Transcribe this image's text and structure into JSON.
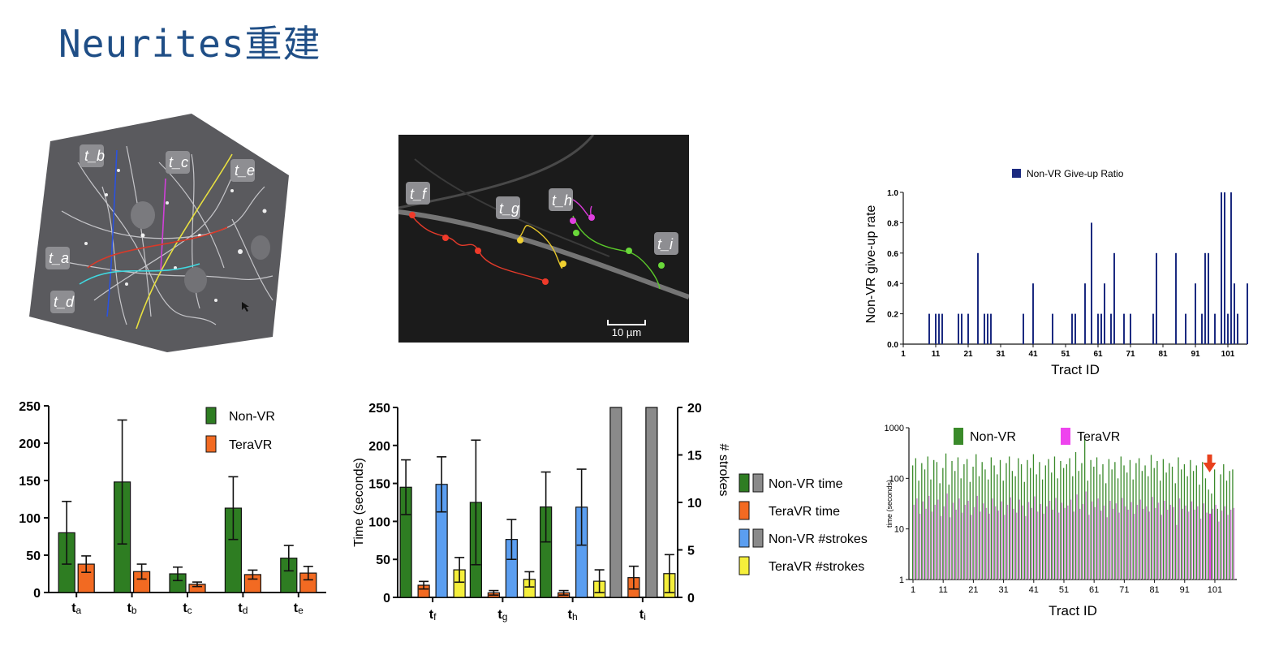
{
  "slide": {
    "title": "Neurites重建"
  },
  "images": {
    "micro1_labels": [
      "t_b",
      "t_c",
      "t_e",
      "t_a",
      "t_d"
    ],
    "micro2_labels": [
      "t_f",
      "t_g",
      "t_h",
      "t_i"
    ],
    "scale_bar": "10 µm"
  },
  "chart_data": [
    {
      "type": "bar",
      "id": "chart-a",
      "categories": [
        "ta",
        "tb",
        "tc",
        "td",
        "te"
      ],
      "category_main": "t",
      "category_sub": [
        "a",
        "b",
        "c",
        "d",
        "e"
      ],
      "ylim": [
        0,
        250
      ],
      "yticks": [
        0,
        50,
        100,
        150,
        200,
        250
      ],
      "series": [
        {
          "name": "Non-VR",
          "color": "#2e7d22",
          "values": [
            80,
            148,
            25,
            113,
            46
          ],
          "err": [
            42,
            83,
            9,
            42,
            17
          ]
        },
        {
          "name": "TeraVR",
          "color": "#f26a22",
          "values": [
            38,
            28,
            11,
            24,
            26
          ],
          "err": [
            11,
            10,
            3,
            6,
            9
          ]
        }
      ],
      "legend": "top-right"
    },
    {
      "type": "bar",
      "id": "chart-b",
      "categories": [
        "tf",
        "tg",
        "th",
        "ti"
      ],
      "category_main": "t",
      "category_sub": [
        "f",
        "g",
        "h",
        "i"
      ],
      "ylabel": "Time (seconds)",
      "ylim": [
        0,
        250
      ],
      "yticks": [
        0,
        50,
        100,
        150,
        200,
        250
      ],
      "y2label": "# strokes",
      "y2lim": [
        0,
        20
      ],
      "y2ticks": [
        0,
        5,
        10,
        15,
        20
      ],
      "series": [
        {
          "name": "Non-VR time",
          "color": "#2e7d22",
          "axis": "left",
          "values": [
            145,
            125,
            119,
            250
          ],
          "err": [
            36,
            82,
            46,
            0
          ]
        },
        {
          "name": "TeraVR time",
          "color": "#f26a22",
          "axis": "left",
          "values": [
            16,
            6,
            6,
            26
          ],
          "err": [
            5,
            3,
            3,
            15
          ]
        },
        {
          "name": "Non-VR #strokes",
          "color": "#5b9ef0",
          "axis": "right",
          "values": [
            11.9,
            6.1,
            9.5,
            20
          ],
          "err": [
            2.9,
            2.1,
            4.0,
            0
          ]
        },
        {
          "name": "TeraVR #strokes",
          "color": "#f5ef3b",
          "axis": "right",
          "values": [
            2.9,
            1.9,
            1.7,
            2.5
          ],
          "err": [
            1.3,
            0.8,
            1.2,
            2.0
          ]
        }
      ],
      "overflow_color": "#8a8a8a",
      "legend_entries": [
        {
          "label": "Non-VR time",
          "colors": [
            "#2e7d22",
            "#8a8a8a"
          ]
        },
        {
          "label": "TeraVR time",
          "colors": [
            "#f26a22"
          ]
        },
        {
          "label": "Non-VR #strokes",
          "colors": [
            "#5b9ef0",
            "#8a8a8a"
          ]
        },
        {
          "label": "TeraVR #strokes",
          "colors": [
            "#f5ef3b"
          ]
        }
      ],
      "legend": "right"
    },
    {
      "type": "bar",
      "id": "chart-c",
      "legend_label": "Non-VR Give-up Ratio",
      "color": "#1b2a80",
      "xlabel": "Tract ID",
      "ylabel": "Non-VR give-up rate",
      "xlim": [
        1,
        107
      ],
      "xticks": [
        1,
        11,
        21,
        31,
        41,
        51,
        61,
        71,
        81,
        91,
        101
      ],
      "ylim": [
        0,
        1
      ],
      "yticks": [
        "0.0",
        "0.2",
        "0.4",
        "0.6",
        "0.8",
        "1.0"
      ],
      "x": [
        9,
        11,
        12,
        13,
        18,
        19,
        21,
        24,
        26,
        27,
        28,
        38,
        41,
        47,
        53,
        54,
        57,
        59,
        61,
        62,
        63,
        65,
        66,
        69,
        71,
        78,
        79,
        85,
        88,
        91,
        93,
        94,
        95,
        97,
        99,
        100,
        101,
        102,
        103,
        104,
        107
      ],
      "values": [
        0.2,
        0.2,
        0.2,
        0.2,
        0.2,
        0.2,
        0.2,
        0.6,
        0.2,
        0.2,
        0.2,
        0.2,
        0.4,
        0.2,
        0.2,
        0.2,
        0.4,
        0.8,
        0.2,
        0.2,
        0.4,
        0.2,
        0.6,
        0.2,
        0.2,
        0.2,
        0.6,
        0.6,
        0.2,
        0.4,
        0.2,
        0.6,
        0.6,
        0.2,
        1.0,
        1.0,
        0.2,
        1.0,
        0.4,
        0.2,
        0.4
      ],
      "legend": "top"
    },
    {
      "type": "bar",
      "id": "chart-d",
      "xlabel": "Tract ID",
      "ylabel": "time (seconds)",
      "yscale": "log",
      "ylim": [
        1,
        1000
      ],
      "yticks": [
        "1",
        "10",
        "100",
        "1000"
      ],
      "xticks": [
        1,
        11,
        21,
        31,
        41,
        51,
        61,
        71,
        81,
        91,
        101
      ],
      "n": 107,
      "series": [
        {
          "name": "Non-VR",
          "color": "#3a8a2a",
          "values": [
            180,
            250,
            90,
            200,
            150,
            270,
            95,
            230,
            210,
            80,
            160,
            310,
            75,
            220,
            140,
            260,
            100,
            190,
            240,
            85,
            170,
            300,
            110,
            210,
            150,
            95,
            260,
            180,
            120,
            230,
            90,
            200,
            270,
            140,
            110,
            250,
            190,
            85,
            230,
            160,
            300,
            120,
            210,
            95,
            180,
            240,
            130,
            270,
            100,
            220,
            160,
            190,
            250,
            110,
            330,
            140,
            200,
            600,
            90,
            230,
            170,
            260,
            120,
            190,
            80,
            240,
            150,
            210,
            100,
            270,
            180,
            130,
            230,
            95,
            200,
            250,
            140,
            180,
            110,
            290,
            160,
            220,
            90,
            240,
            130,
            200,
            170,
            80,
            260,
            150,
            190,
            110,
            230,
            140,
            180,
            75,
            210,
            100,
            60,
            50,
            150,
            25,
            120,
            190,
            90,
            140,
            150
          ]
        },
        {
          "name": "TeraVR",
          "color": "#d886e0",
          "values": [
            30,
            40,
            20,
            35,
            25,
            45,
            22,
            30,
            38,
            18,
            28,
            50,
            17,
            33,
            24,
            40,
            21,
            30,
            36,
            19,
            27,
            45,
            22,
            32,
            26,
            20,
            40,
            28,
            23,
            35,
            19,
            30,
            42,
            25,
            21,
            38,
            29,
            18,
            34,
            26,
            44,
            22,
            31,
            20,
            28,
            36,
            24,
            41,
            21,
            33,
            26,
            29,
            38,
            22,
            48,
            25,
            31,
            55,
            19,
            35,
            27,
            40,
            23,
            29,
            17,
            36,
            25,
            32,
            21,
            41,
            28,
            24,
            34,
            20,
            30,
            38,
            25,
            28,
            22,
            43,
            26,
            33,
            19,
            36,
            24,
            30,
            27,
            12,
            40,
            25,
            29,
            22,
            35,
            24,
            28,
            16,
            32,
            21,
            20,
            25,
            30,
            14,
            23,
            28,
            19,
            24,
            26
          ]
        }
      ],
      "highlight_x": 99,
      "highlight_color": "#ee44ee",
      "arrow_color": "#e8401c",
      "legend_labels": [
        "Non-VR",
        "TeraVR"
      ],
      "legend_colors": [
        "#3a8a2a",
        "#ee44ee"
      ],
      "legend": "top"
    }
  ]
}
